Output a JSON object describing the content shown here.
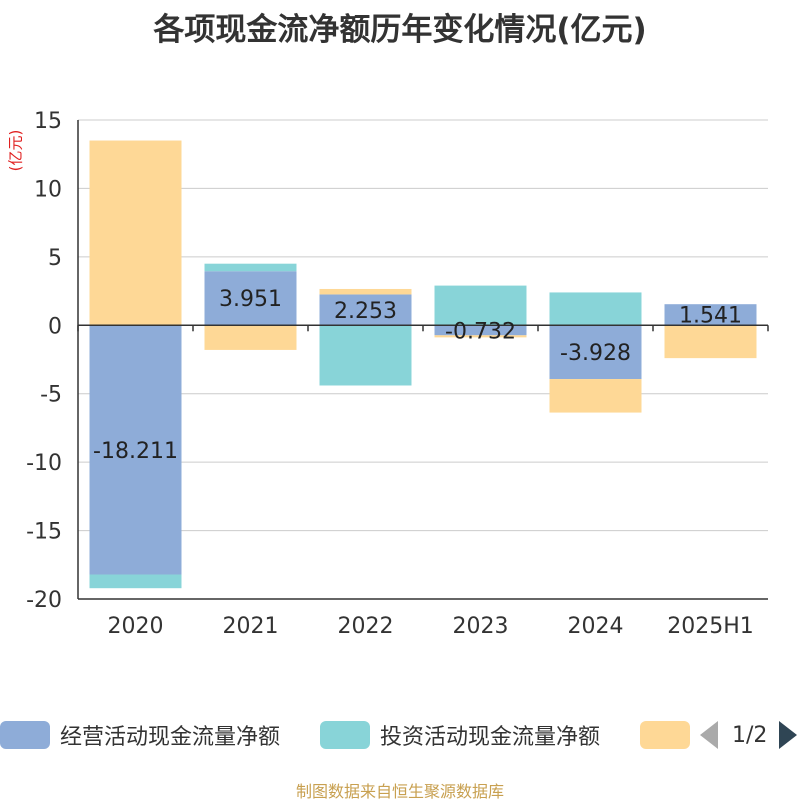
{
  "title": "各项现金流净额历年变化情况(亿元)",
  "unit_label": "(亿元)",
  "source": "制图数据来自恒生聚源数据库",
  "legend": {
    "items": [
      {
        "label": "经营活动现金流量净额",
        "color": "#8eacd8"
      },
      {
        "label": "投资活动现金流量净额",
        "color": "#88d4d8"
      },
      {
        "label": "",
        "color": "#fed896"
      }
    ],
    "page": "1/2"
  },
  "chart_data": {
    "type": "bar",
    "stacked": true,
    "categories": [
      "2020",
      "2021",
      "2022",
      "2023",
      "2024",
      "2025H1"
    ],
    "series": [
      {
        "name": "经营活动现金流量净额",
        "color": "#8eacd8",
        "values": [
          -18.211,
          3.951,
          2.253,
          -0.732,
          -3.928,
          1.541
        ]
      },
      {
        "name": "投资活动现金流量净额",
        "color": "#88d4d8",
        "values": [
          -1.0,
          0.55,
          -4.4,
          2.9,
          2.4,
          0.0
        ]
      },
      {
        "name": "",
        "color": "#fed896",
        "values": [
          13.5,
          -1.8,
          0.4,
          -0.15,
          -2.45,
          -2.4
        ]
      }
    ],
    "data_labels": [
      "-18.211",
      "3.951",
      "2.253",
      "-0.732",
      "-3.928",
      "1.541"
    ],
    "yticks": [
      "15",
      "10",
      "5",
      "0",
      "-5",
      "-10",
      "-15",
      "-20"
    ],
    "ylim": [
      -20,
      15
    ],
    "grid": true
  }
}
